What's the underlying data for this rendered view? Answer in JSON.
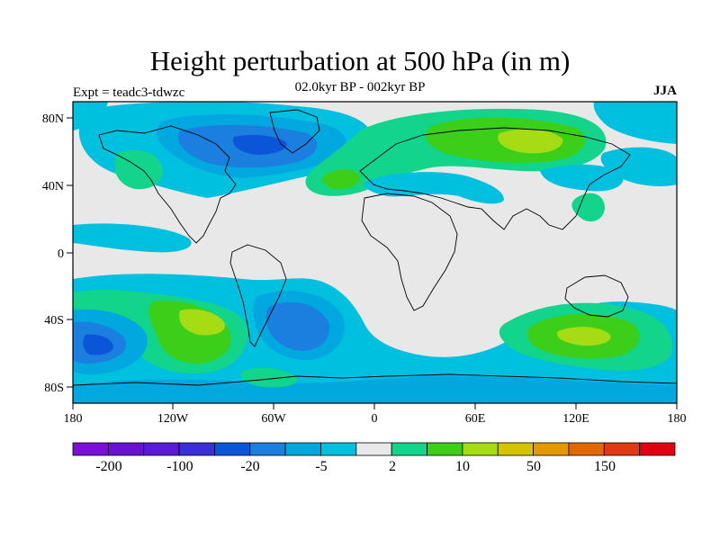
{
  "header": {
    "title": "Height perturbation at 500 hPa (in m)",
    "subtitle": "02.0kyr BP - 002kyr BP",
    "experiment": "Expt = teadc3-tdwzc",
    "season": "JJA"
  },
  "axes": {
    "y_ticks": [
      "80N",
      "40N",
      "0",
      "40S",
      "80S"
    ],
    "x_ticks": [
      "180",
      "120W",
      "60W",
      "0",
      "60E",
      "120E",
      "180"
    ]
  },
  "colorbar": {
    "colors": [
      "#7a0fd8",
      "#6a12d2",
      "#5a1bd6",
      "#3a2fd9",
      "#0a55d8",
      "#1a7fde",
      "#00a8df",
      "#00c0e0",
      "#e8e8e8",
      "#12d48a",
      "#3ccf1a",
      "#a6dc14",
      "#d4c400",
      "#e39a00",
      "#e06a00",
      "#e03a10",
      "#e00010"
    ],
    "labels": [
      "-200",
      "-100",
      "-20",
      "-5",
      "2",
      "10",
      "50",
      "150"
    ]
  },
  "palette": {
    "background": "#e8e8e8",
    "neg_weak": "#00c0e0",
    "neg_mid": "#00a8df",
    "neg_strong": "#1a7fde",
    "neg_stronger": "#0a55d8",
    "pos_weak": "#12d48a",
    "pos_mid": "#3ccf1a",
    "pos_strong": "#a6dc14"
  }
}
